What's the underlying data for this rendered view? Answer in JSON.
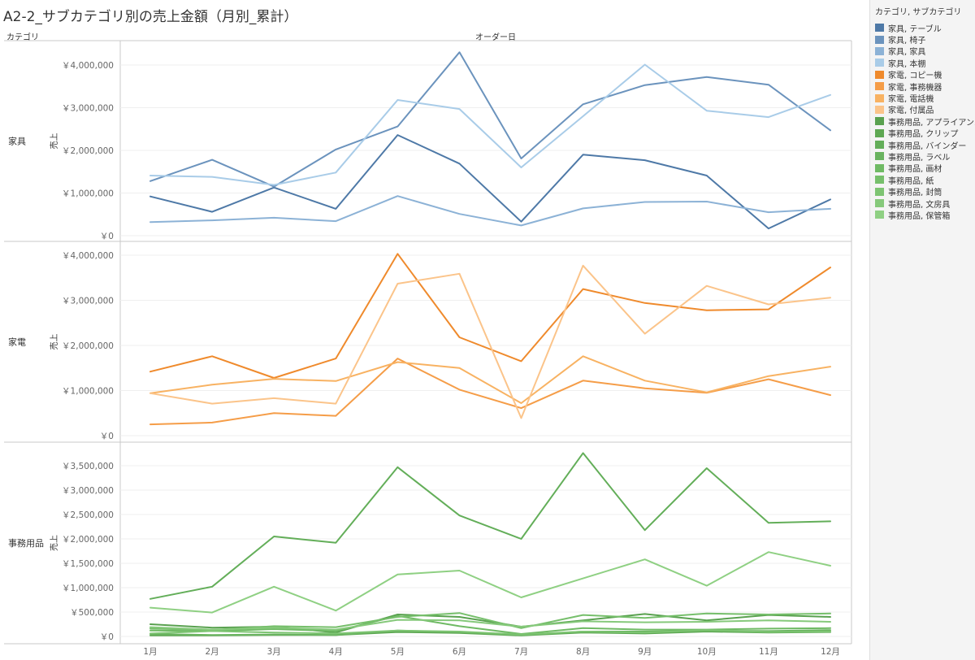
{
  "title": "A2-2_サブカテゴリ別の売上金額（月別_累計）",
  "row_header": "カテゴリ",
  "column_header": "オーダー日",
  "legend": {
    "title": "カテゴリ, サブカテゴリ",
    "items": [
      {
        "label": "家具, テーブル",
        "color": "#4e79a7"
      },
      {
        "label": "家具, 椅子",
        "color": "#6b93bd"
      },
      {
        "label": "家具, 家具",
        "color": "#8cb2d6"
      },
      {
        "label": "家具, 本棚",
        "color": "#a9cce8"
      },
      {
        "label": "家電, コピー機",
        "color": "#ef8a2c"
      },
      {
        "label": "家電, 事務機器",
        "color": "#f59d48"
      },
      {
        "label": "家電, 電話機",
        "color": "#f8b262"
      },
      {
        "label": "家電, 付属品",
        "color": "#fbc48a"
      },
      {
        "label": "事務用品, アプライアンス",
        "color": "#59a14f"
      },
      {
        "label": "事務用品, クリップ",
        "color": "#5ea853"
      },
      {
        "label": "事務用品, バインダー",
        "color": "#63ae59"
      },
      {
        "label": "事務用品, ラベル",
        "color": "#69b35f"
      },
      {
        "label": "事務用品, 画材",
        "color": "#6fba64"
      },
      {
        "label": "事務用品, 紙",
        "color": "#76bf6b"
      },
      {
        "label": "事務用品, 封筒",
        "color": "#7dc472"
      },
      {
        "label": "事務用品, 文房具",
        "color": "#86c97b"
      },
      {
        "label": "事務用品, 保管箱",
        "color": "#8fd083"
      }
    ]
  },
  "chart_data": {
    "type": "line",
    "x_categories": [
      "1月",
      "2月",
      "3月",
      "4月",
      "5月",
      "6月",
      "7月",
      "8月",
      "9月",
      "10月",
      "11月",
      "12月"
    ],
    "y_axis_title": "売上",
    "panels": [
      {
        "category": "家具",
        "ylim": [
          0,
          4400000
        ],
        "yticks": [
          0,
          1000000,
          2000000,
          3000000,
          4000000
        ],
        "ytick_labels": [
          "￥0",
          "￥1,000,000",
          "￥2,000,000",
          "￥3,000,000",
          "￥4,000,000"
        ],
        "series": [
          {
            "name": "家具, テーブル",
            "color": "#4e79a7",
            "values": [
              920000,
              560000,
              1130000,
              630000,
              2360000,
              1690000,
              330000,
              1900000,
              1770000,
              1410000,
              170000,
              850000
            ]
          },
          {
            "name": "家具, 椅子",
            "color": "#6b93bd",
            "values": [
              1280000,
              1780000,
              1150000,
              2020000,
              2560000,
              4300000,
              1810000,
              3080000,
              3530000,
              3720000,
              3540000,
              2470000
            ]
          },
          {
            "name": "家具, 家具",
            "color": "#8cb2d6",
            "values": [
              320000,
              360000,
              420000,
              340000,
              930000,
              510000,
              240000,
              640000,
              790000,
              800000,
              550000,
              630000
            ]
          },
          {
            "name": "家具, 本棚",
            "color": "#a9cce8",
            "values": [
              1410000,
              1380000,
              1190000,
              1480000,
              3180000,
              2970000,
              1600000,
              2800000,
              4010000,
              2930000,
              2780000,
              3300000
            ]
          }
        ]
      },
      {
        "category": "家電",
        "ylim": [
          0,
          4200000
        ],
        "yticks": [
          0,
          1000000,
          2000000,
          3000000,
          4000000
        ],
        "ytick_labels": [
          "￥0",
          "￥1,000,000",
          "￥2,000,000",
          "￥3,000,000",
          "￥4,000,000"
        ],
        "series": [
          {
            "name": "家電, コピー機",
            "color": "#ef8a2c",
            "values": [
              1420000,
              1760000,
              1280000,
              1710000,
              4030000,
              2180000,
              1650000,
              3250000,
              2940000,
              2780000,
              2800000,
              3730000
            ]
          },
          {
            "name": "家電, 事務機器",
            "color": "#f59d48",
            "values": [
              250000,
              290000,
              500000,
              440000,
              1710000,
              1020000,
              610000,
              1220000,
              1050000,
              950000,
              1250000,
              900000
            ]
          },
          {
            "name": "家電, 電話機",
            "color": "#f8b262",
            "values": [
              940000,
              1130000,
              1260000,
              1210000,
              1630000,
              1500000,
              720000,
              1760000,
              1220000,
              960000,
              1320000,
              1530000
            ]
          },
          {
            "name": "家電, 付属品",
            "color": "#fbc48a",
            "values": [
              940000,
              710000,
              830000,
              710000,
              3370000,
              3590000,
              390000,
              3770000,
              2260000,
              3320000,
              2910000,
              3060000
            ]
          }
        ]
      },
      {
        "category": "事務用品",
        "ylim": [
          0,
          3800000
        ],
        "yticks": [
          0,
          500000,
          1000000,
          1500000,
          2000000,
          2500000,
          3000000,
          3500000
        ],
        "ytick_labels": [
          "￥0",
          "￥500,000",
          "￥1,000,000",
          "￥1,500,000",
          "￥2,000,000",
          "￥2,500,000",
          "￥3,000,000",
          "￥3,500,000"
        ],
        "series": [
          {
            "name": "事務用品, アプライアンス",
            "color": "#59a14f",
            "values": [
              250000,
              180000,
              200000,
              80000,
              450000,
              400000,
              200000,
              330000,
              460000,
              330000,
              440000,
              400000
            ]
          },
          {
            "name": "事務用品, クリップ",
            "color": "#5ea853",
            "values": [
              20000,
              20000,
              30000,
              30000,
              90000,
              70000,
              20000,
              80000,
              60000,
              100000,
              80000,
              90000
            ]
          },
          {
            "name": "事務用品, バインダー",
            "color": "#63ae59",
            "values": [
              770000,
              1020000,
              2050000,
              1920000,
              3470000,
              2480000,
              2000000,
              3760000,
              2180000,
              3450000,
              2330000,
              2360000
            ]
          },
          {
            "name": "事務用品, ラベル",
            "color": "#69b35f",
            "values": [
              50000,
              30000,
              40000,
              30000,
              120000,
              90000,
              30000,
              100000,
              100000,
              120000,
              110000,
              130000
            ]
          },
          {
            "name": "事務用品, 画材",
            "color": "#6fba64",
            "values": [
              120000,
              110000,
              150000,
              110000,
              420000,
              210000,
              50000,
              170000,
              140000,
              140000,
              160000,
              170000
            ]
          },
          {
            "name": "事務用品, 紙",
            "color": "#76bf6b",
            "values": [
              160000,
              130000,
              210000,
              190000,
              400000,
              480000,
              170000,
              440000,
              380000,
              470000,
              450000,
              470000
            ]
          },
          {
            "name": "事務用品, 封筒",
            "color": "#7dc472",
            "values": [
              60000,
              110000,
              80000,
              60000,
              120000,
              100000,
              40000,
              100000,
              80000,
              130000,
              90000,
              100000
            ]
          },
          {
            "name": "事務用品, 文房具",
            "color": "#86c97b",
            "values": [
              190000,
              140000,
              180000,
              140000,
              340000,
              330000,
              200000,
              310000,
              290000,
              300000,
              330000,
              300000
            ]
          },
          {
            "name": "事務用品, 保管箱",
            "color": "#8fd083",
            "values": [
              590000,
              490000,
              1020000,
              530000,
              1270000,
              1350000,
              800000,
              1190000,
              1580000,
              1040000,
              1730000,
              1450000
            ]
          }
        ]
      }
    ]
  }
}
